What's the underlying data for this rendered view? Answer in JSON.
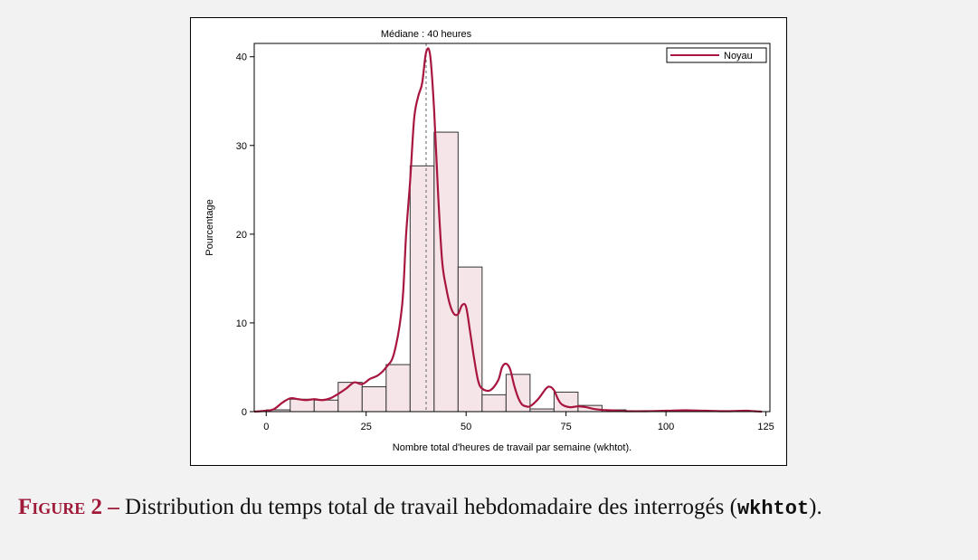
{
  "colors": {
    "background": "#f2f2f2",
    "bar_fill": "#f5e4e8",
    "bar_stroke": "#333333",
    "kernel_line": "#a8163f",
    "median_line": "#666666",
    "caption_accent": "#a01b3a"
  },
  "chart_data": {
    "type": "bar",
    "title": "Médiane : 40 heures",
    "xlabel": "Nombre total d'heures de travail par semaine (wkhtot).",
    "ylabel": "Pourcentage",
    "xlim": [
      -3,
      126
    ],
    "ylim": [
      0,
      41.5
    ],
    "xticks": [
      0,
      25,
      50,
      75,
      100,
      125
    ],
    "yticks": [
      0,
      10,
      20,
      30,
      40
    ],
    "legend": {
      "position": "top-right",
      "entries": [
        "Noyau"
      ]
    },
    "median": 40,
    "bins": [
      {
        "x0": 0,
        "x1": 6,
        "value": 0.2
      },
      {
        "x0": 6,
        "x1": 12,
        "value": 1.4
      },
      {
        "x0": 12,
        "x1": 18,
        "value": 1.3
      },
      {
        "x0": 18,
        "x1": 24,
        "value": 3.3
      },
      {
        "x0": 24,
        "x1": 30,
        "value": 2.8
      },
      {
        "x0": 30,
        "x1": 36,
        "value": 5.3
      },
      {
        "x0": 36,
        "x1": 42,
        "value": 27.7
      },
      {
        "x0": 42,
        "x1": 48,
        "value": 31.5
      },
      {
        "x0": 48,
        "x1": 54,
        "value": 16.3
      },
      {
        "x0": 54,
        "x1": 60,
        "value": 1.9
      },
      {
        "x0": 60,
        "x1": 66,
        "value": 4.2
      },
      {
        "x0": 66,
        "x1": 72,
        "value": 0.3
      },
      {
        "x0": 72,
        "x1": 78,
        "value": 2.2
      },
      {
        "x0": 78,
        "x1": 84,
        "value": 0.7
      },
      {
        "x0": 84,
        "x1": 90,
        "value": 0.2
      }
    ],
    "series": [
      {
        "name": "Noyau",
        "x": [
          -3,
          0,
          2,
          4,
          6,
          8,
          10,
          12,
          14,
          16,
          18,
          20,
          22,
          24,
          26,
          28,
          30,
          32,
          34,
          35,
          36,
          37,
          38,
          39,
          40,
          41,
          42,
          43,
          44,
          45,
          46,
          47,
          48,
          49,
          50,
          51,
          52,
          53,
          54,
          56,
          58,
          59,
          60,
          61,
          62,
          63,
          64,
          65,
          66,
          68,
          70,
          71,
          72,
          73,
          74,
          76,
          78,
          80,
          82,
          84,
          86,
          88,
          90,
          95,
          100,
          105,
          110,
          115,
          120,
          122,
          124
        ],
        "y": [
          0,
          0.1,
          0.3,
          1.0,
          1.5,
          1.4,
          1.3,
          1.4,
          1.3,
          1.5,
          2.0,
          2.6,
          3.3,
          3.1,
          3.7,
          4.1,
          5.0,
          6.6,
          12.0,
          20.0,
          26.0,
          33.0,
          35.5,
          37.0,
          40.5,
          40.2,
          34.0,
          24.5,
          17.0,
          14.0,
          12.0,
          11.0,
          11.0,
          12.0,
          11.8,
          9.0,
          6.0,
          3.5,
          2.6,
          2.4,
          3.5,
          5.0,
          5.4,
          4.8,
          3.0,
          1.6,
          0.8,
          0.6,
          0.6,
          1.4,
          2.6,
          2.8,
          2.4,
          1.4,
          0.8,
          0.5,
          0.6,
          0.5,
          0.3,
          0.2,
          0.15,
          0.1,
          0.05,
          0.05,
          0.1,
          0.15,
          0.1,
          0.05,
          0.1,
          0.05,
          0.0
        ]
      }
    ]
  },
  "caption": {
    "label": "Figure 2 –",
    "text": " Distribution du temps total de travail hebdomadaire des interrogés (",
    "code": "wkhtot",
    "end": ")."
  }
}
